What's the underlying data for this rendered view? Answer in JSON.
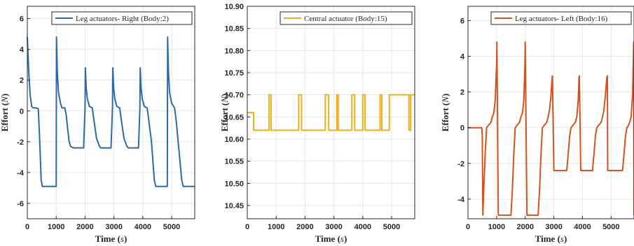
{
  "chart_data": [
    {
      "type": "line",
      "xlabel": "Time",
      "xlabel_unit": "s",
      "ylabel": "Effort",
      "ylabel_unit": "N",
      "xlim": [
        0,
        5800
      ],
      "ylim": [
        -7,
        6.8
      ],
      "xticks": [
        0,
        1000,
        2000,
        3000,
        4000,
        5000
      ],
      "yticks": [
        -6,
        -4,
        -2,
        0,
        2,
        4,
        6
      ],
      "ytick_decimals": 0,
      "grid": true,
      "legend_position": "top-right",
      "series": [
        {
          "name": "Leg actuators- Right (Body:2)",
          "color": "#2e6aa9",
          "x": [
            0,
            50,
            100,
            150,
            200,
            300,
            380,
            420,
            480,
            520,
            1000,
            1010,
            1040,
            1080,
            1150,
            1200,
            1250,
            1300,
            1350,
            1400,
            1450,
            1500,
            1600,
            1650,
            1850,
            1950,
            2000,
            2010,
            2040,
            2080,
            2150,
            2250,
            2300,
            2400,
            2500,
            2550,
            2750,
            2900,
            2950,
            2960,
            2990,
            3030,
            3100,
            3200,
            3250,
            3350,
            3450,
            3500,
            3700,
            3850,
            3900,
            3910,
            3940,
            3980,
            4050,
            4150,
            4200,
            4300,
            4400,
            4450,
            4800,
            4850,
            4860,
            4890,
            4930,
            5000,
            5100,
            5150,
            5250,
            5350,
            5400,
            5800
          ],
          "y": [
            4.8,
            2.5,
            1.0,
            0.3,
            0.2,
            0.2,
            0.15,
            -1.5,
            -4.5,
            -4.9,
            -4.9,
            4.8,
            2.5,
            1.2,
            0.5,
            0.2,
            0.2,
            0.2,
            -0.3,
            -1.2,
            -2.0,
            -2.3,
            -2.4,
            -2.4,
            -2.4,
            -2.4,
            0.2,
            2.8,
            1.5,
            0.8,
            0.3,
            0.2,
            -0.5,
            -1.8,
            -2.3,
            -2.4,
            -2.4,
            -2.4,
            0.2,
            2.8,
            1.5,
            0.8,
            0.3,
            0.2,
            -0.5,
            -1.8,
            -2.3,
            -2.4,
            -2.4,
            -2.4,
            0.2,
            2.8,
            1.5,
            0.8,
            0.3,
            0.2,
            -0.5,
            -2.0,
            -4.5,
            -4.9,
            -4.9,
            -4.9,
            4.8,
            2.5,
            1.2,
            0.5,
            0.2,
            -0.5,
            -2.5,
            -4.5,
            -4.9,
            -4.9
          ]
        }
      ]
    },
    {
      "type": "line",
      "xlabel": "Time",
      "xlabel_unit": "s",
      "ylabel": "Effort",
      "ylabel_unit": "N",
      "xlim": [
        0,
        5800
      ],
      "ylim": [
        10.42,
        10.9
      ],
      "xticks": [
        0,
        1000,
        2000,
        3000,
        4000,
        5000
      ],
      "yticks": [
        10.45,
        10.5,
        10.55,
        10.6,
        10.65,
        10.7,
        10.75,
        10.8,
        10.85,
        10.9
      ],
      "ytick_decimals": 2,
      "grid": true,
      "legend_position": "top-right",
      "series": [
        {
          "name": "Central actuator (Body:15)",
          "color": "#ecb01f",
          "x": [
            0,
            220,
            220,
            750,
            750,
            820,
            820,
            1780,
            1780,
            1880,
            1880,
            2700,
            2700,
            2820,
            2820,
            3100,
            3100,
            3150,
            3150,
            3620,
            3620,
            3720,
            3720,
            4000,
            4000,
            4080,
            4080,
            4600,
            4600,
            4660,
            4660,
            4920,
            4920,
            5600,
            5600,
            5660,
            5660,
            5800
          ],
          "y": [
            10.66,
            10.66,
            10.62,
            10.62,
            10.7,
            10.7,
            10.62,
            10.62,
            10.7,
            10.7,
            10.62,
            10.62,
            10.7,
            10.7,
            10.62,
            10.62,
            10.7,
            10.7,
            10.62,
            10.62,
            10.7,
            10.7,
            10.62,
            10.62,
            10.7,
            10.7,
            10.62,
            10.62,
            10.7,
            10.7,
            10.62,
            10.62,
            10.7,
            10.7,
            10.62,
            10.62,
            10.7,
            10.7
          ]
        }
      ]
    },
    {
      "type": "line",
      "xlabel": "Time",
      "xlabel_unit": "s",
      "ylabel": "Effort",
      "ylabel_unit": "N",
      "xlim": [
        0,
        5800
      ],
      "ylim": [
        -5.1,
        6.8
      ],
      "xticks": [
        0,
        1000,
        2000,
        3000,
        4000,
        5000
      ],
      "yticks": [
        -4,
        -2,
        0,
        2,
        4,
        6
      ],
      "ytick_decimals": 0,
      "grid": true,
      "legend_position": "top-right",
      "series": [
        {
          "name": "Leg actuators- Left (Body:16)",
          "color": "#d4531c",
          "x": [
            0,
            480,
            500,
            520,
            550,
            600,
            650,
            700,
            750,
            800,
            850,
            900,
            950,
            1000,
            1010,
            1060,
            1500,
            1550,
            1600,
            1650,
            1700,
            1750,
            1800,
            1850,
            1900,
            1950,
            1990,
            2000,
            2060,
            2450,
            2500,
            2550,
            2600,
            2650,
            2700,
            2750,
            2800,
            2850,
            2900,
            2940,
            2950,
            3000,
            3450,
            3500,
            3550,
            3600,
            3650,
            3700,
            3750,
            3800,
            3850,
            3880,
            3890,
            3940,
            4350,
            4400,
            4450,
            4500,
            4550,
            4600,
            4650,
            4700,
            4750,
            4800,
            4850,
            4870,
            4880,
            4930,
            5400,
            5450,
            5500,
            5550,
            5600,
            5650,
            5700,
            5750,
            5790,
            5800
          ],
          "y": [
            0,
            0,
            -0.5,
            -4.9,
            -3.5,
            -1.5,
            0,
            0.1,
            0.2,
            0.3,
            0.6,
            0.8,
            1.5,
            3.5,
            4.8,
            -4.9,
            -4.9,
            -3.5,
            -1.5,
            0,
            0.1,
            0.2,
            0.3,
            0.6,
            0.8,
            1.5,
            3.5,
            4.8,
            -4.9,
            -4.9,
            -3.5,
            -1.5,
            0,
            0.1,
            0.2,
            0.3,
            0.6,
            1.0,
            1.8,
            2.8,
            2.9,
            -2.4,
            -2.4,
            -1.5,
            -0.5,
            0,
            0.1,
            0.2,
            0.3,
            0.6,
            1.5,
            2.8,
            2.9,
            -2.4,
            -2.4,
            -1.5,
            -0.5,
            0,
            0.1,
            0.2,
            0.3,
            0.6,
            1.0,
            1.8,
            2.8,
            2.9,
            -2.4,
            -2.4,
            -2.4,
            -1.5,
            -0.5,
            0,
            0.1,
            0.3,
            0.6,
            1.8,
            4.8,
            -4.9
          ]
        }
      ]
    }
  ]
}
